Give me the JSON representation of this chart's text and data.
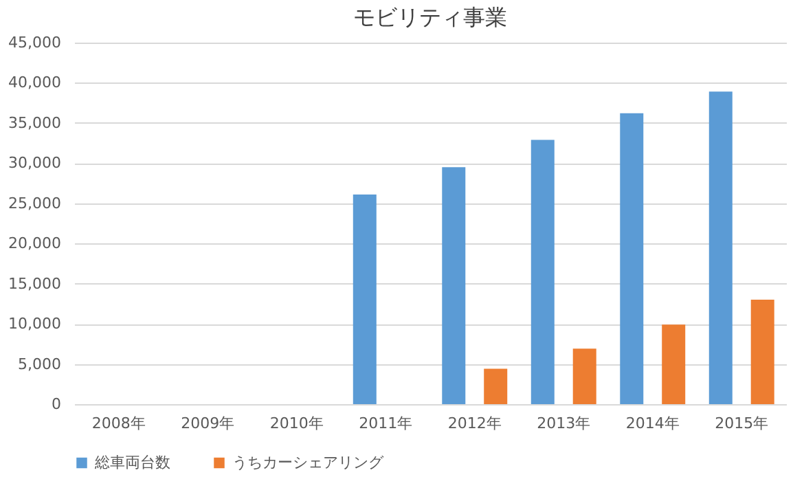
{
  "chart_data": {
    "type": "bar",
    "title": "モビリティ事業",
    "categories": [
      "2008年",
      "2009年",
      "2010年",
      "2011年",
      "2012年",
      "2013年",
      "2014年",
      "2015年"
    ],
    "series": [
      {
        "name": "総車両台数",
        "color": "#5b9bd5",
        "values": [
          null,
          null,
          null,
          26100,
          29500,
          32900,
          36200,
          38900
        ]
      },
      {
        "name": "うちカーシェアリング",
        "color": "#ed7d31",
        "values": [
          null,
          null,
          null,
          null,
          4400,
          6900,
          9900,
          13000
        ]
      }
    ],
    "ylim": [
      0,
      45000
    ],
    "yticks": [
      0,
      {
        "value": 5000,
        "label": "5,000"
      },
      {
        "value": 10000,
        "label": "10,000"
      },
      {
        "value": 15000,
        "label": "15,000"
      },
      {
        "value": 20000,
        "label": "20,000"
      },
      {
        "value": 25000,
        "label": "25,000"
      },
      {
        "value": 30000,
        "label": "30,000"
      },
      {
        "value": 35000,
        "label": "35,000"
      },
      {
        "value": 40000,
        "label": "40,000"
      },
      {
        "value": 45000,
        "label": "45,000"
      }
    ],
    "grid": "y",
    "legend": "bottom"
  }
}
